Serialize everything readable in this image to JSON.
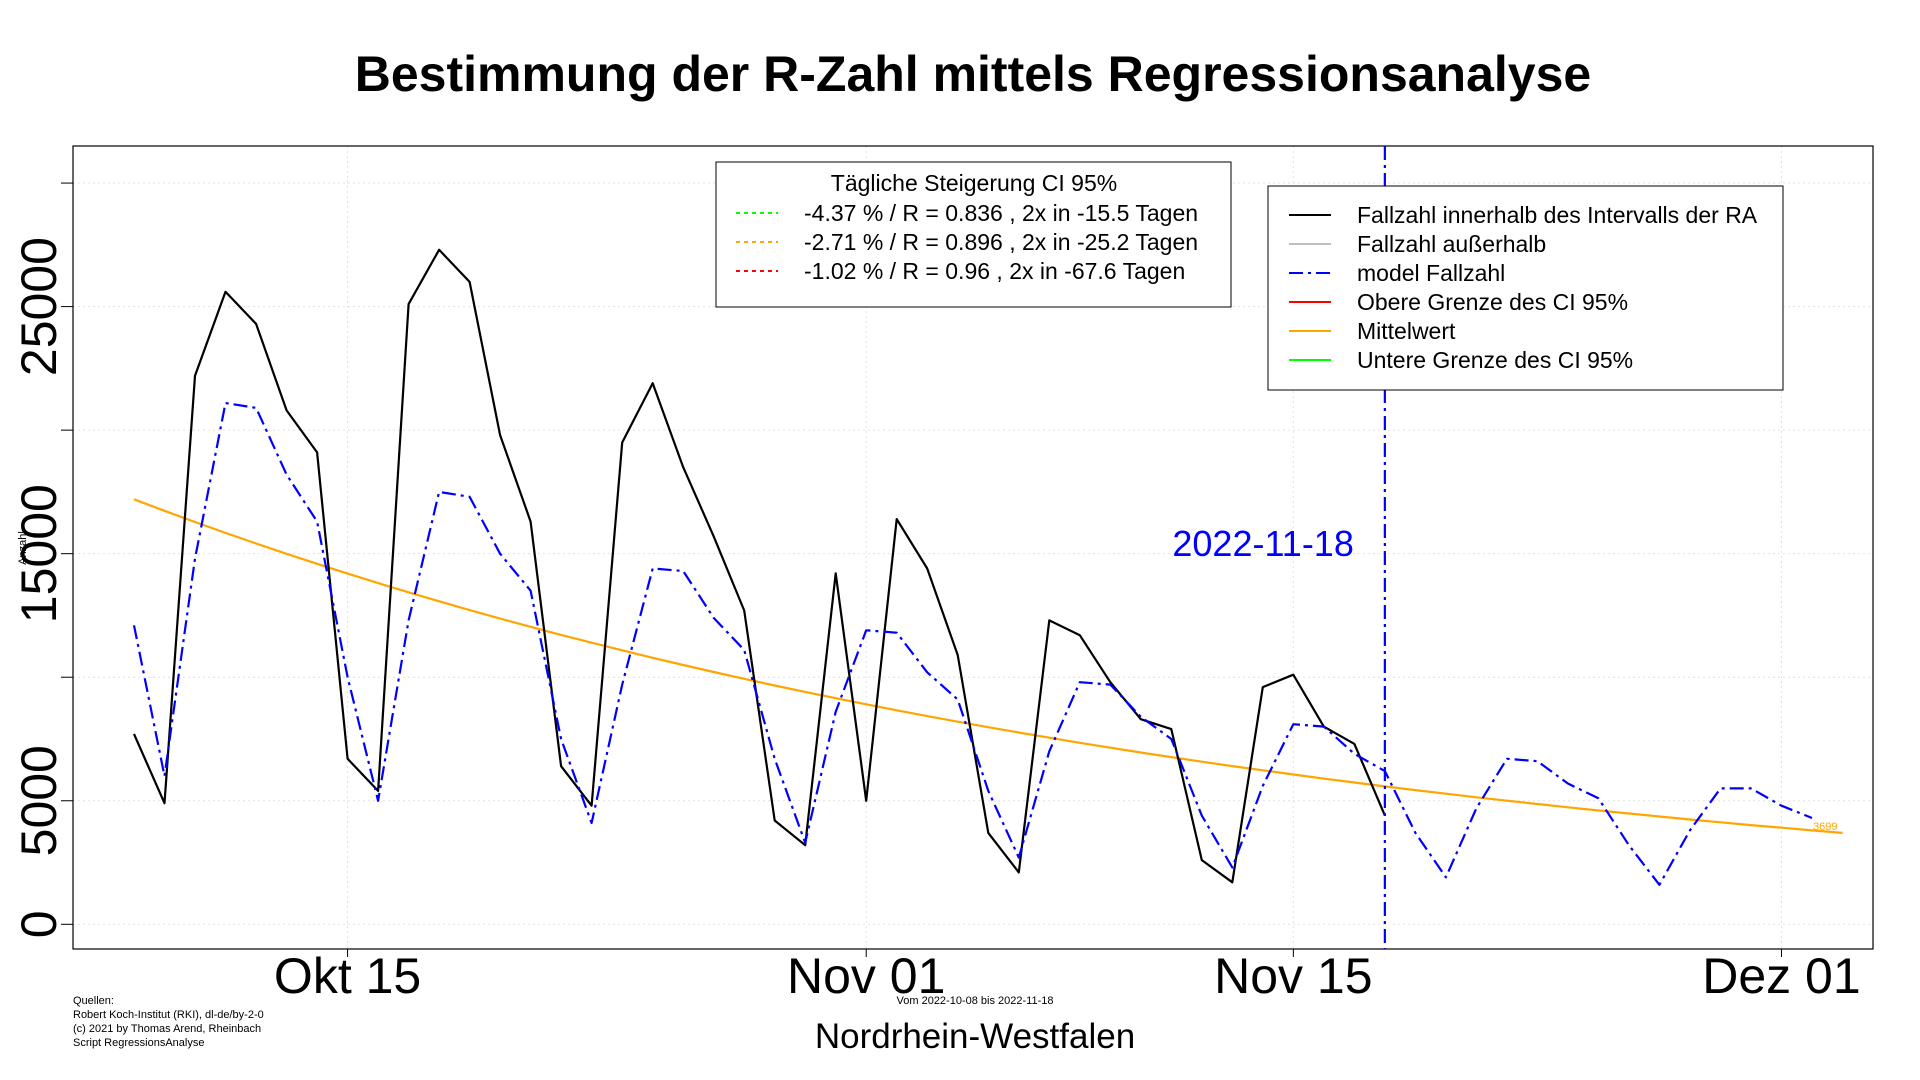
{
  "chart_data": {
    "type": "line",
    "title": "Bestimmung der R-Zahl mittels Regressionsanalyse",
    "ylabel": "Anzahl",
    "xlabel": "Nordrhein-Westfalen",
    "date_range_note": "Vom 2022-10-08 bis 2022-11-18",
    "sources": [
      "Quellen:",
      "Robert Koch-Institut (RKI), dl-de/by-2-0",
      "(c) 2021 by Thomas Arend, Rheinbach",
      "Script RegressionsAnalyse"
    ],
    "x_start": "2022-10-06",
    "x_end": "2022-12-04",
    "x_ticks": [
      {
        "date": "2022-10-15",
        "label": "Okt 15"
      },
      {
        "date": "2022-11-01",
        "label": "Nov 01"
      },
      {
        "date": "2022-11-15",
        "label": "Nov 15"
      },
      {
        "date": "2022-12-01",
        "label": "Dez 01"
      }
    ],
    "ylim": [
      -1000,
      31500
    ],
    "y_ticks": [
      0,
      5000,
      15000,
      25000
    ],
    "y_minor_ticks": [
      10000,
      20000,
      30000
    ],
    "grid": true,
    "cutoff_date": "2022-11-18",
    "cutoff_label": "2022-11-18",
    "end_value_label": "3699",
    "series": [
      {
        "name": "Fallzahl innerhalb des Intervalls der RA",
        "color": "#000000",
        "style": "solid",
        "start_date": "2022-10-08",
        "values": [
          7700,
          4900,
          22200,
          25600,
          24300,
          20800,
          19100,
          6700,
          5400,
          25100,
          27300,
          26000,
          19800,
          16300,
          6400,
          4800,
          19500,
          21900,
          18500,
          15700,
          12700,
          4200,
          3200,
          14200,
          5000,
          16400,
          14400,
          10900,
          3700,
          2100,
          12300,
          11700,
          9800,
          8300,
          7900,
          2600,
          1700,
          9600,
          10100,
          8000,
          7300,
          4400
        ]
      },
      {
        "name": "model Fallzahl",
        "color": "#0000ff",
        "style": "dashdot",
        "start_date": "2022-10-08",
        "values": [
          12100,
          6000,
          14800,
          21100,
          20900,
          18200,
          16300,
          10000,
          5000,
          12300,
          17500,
          17300,
          15000,
          13500,
          7500,
          4100,
          9700,
          14400,
          14300,
          12400,
          11100,
          6700,
          3300,
          8600,
          11900,
          11800,
          10200,
          9100,
          5400,
          2700,
          7000,
          9800,
          9700,
          8400,
          7500,
          4400,
          2300,
          5600,
          8100,
          8000,
          6900,
          6200,
          3700,
          1900,
          4700,
          6700,
          6600,
          5700,
          5100,
          3200,
          1600,
          3800,
          5500,
          5500,
          4800,
          4300
        ]
      },
      {
        "name": "Mittelwert",
        "color": "#ffa500",
        "style": "solid",
        "start_date": "2022-10-08",
        "start_value": 17200,
        "end_date": "2022-12-03",
        "end_value": 3699
      }
    ],
    "legend_main": {
      "placement": "top-right",
      "entries": [
        {
          "label": "Fallzahl innerhalb des Intervalls der RA",
          "color": "#000000",
          "style": "solid"
        },
        {
          "label": "Fallzahl außerhalb",
          "color": "#bebebe",
          "style": "solid"
        },
        {
          "label": "model Fallzahl",
          "color": "#0000ff",
          "style": "dashdot"
        },
        {
          "label": "Obere Grenze des CI 95%",
          "color": "#ff0000",
          "style": "solid"
        },
        {
          "label": "Mittelwert",
          "color": "#ffa500",
          "style": "solid"
        },
        {
          "label": "Untere Grenze des CI 95%",
          "color": "#00ff00",
          "style": "solid"
        }
      ]
    },
    "legend_ci": {
      "placement": "top-center",
      "title": "Tägliche Steigerung CI  95%",
      "entries": [
        {
          "label": "-4.37 % / R = 0.836 , 2x in -15.5 Tagen",
          "color": "#00ff00",
          "style": "dotted"
        },
        {
          "label": "-2.71 % / R = 0.896 , 2x in -25.2 Tagen",
          "color": "#ffa500",
          "style": "dotted"
        },
        {
          "label": "-1.02 % / R = 0.96 , 2x in -67.6 Tagen",
          "color": "#ff0000",
          "style": "dotted"
        }
      ]
    }
  }
}
